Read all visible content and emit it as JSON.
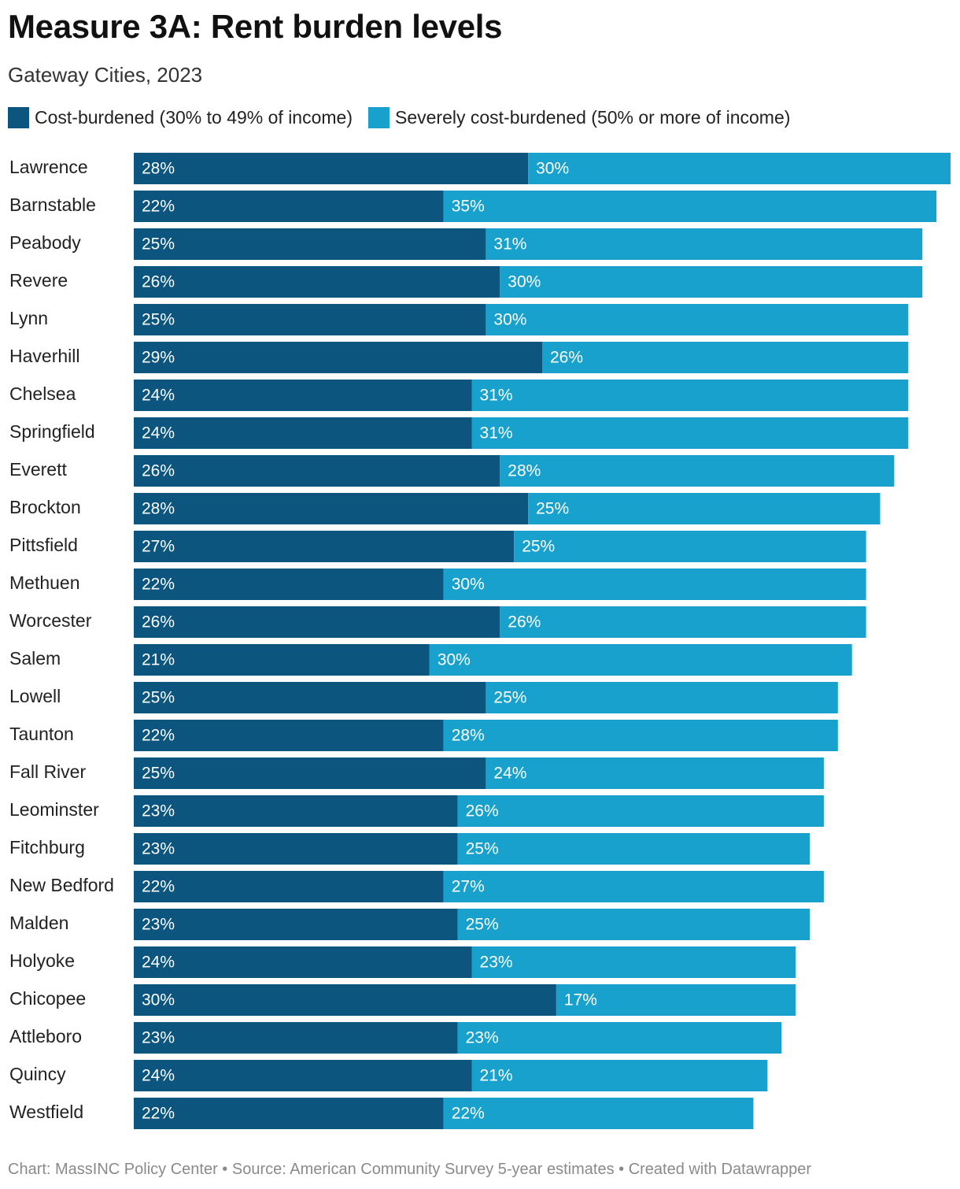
{
  "header": {
    "title": "Measure 3A: Rent burden levels",
    "subtitle": "Gateway Cities, 2023"
  },
  "legend": {
    "items": [
      {
        "label": "Cost-burdened (30% to 49% of income)",
        "color": "#0b557f"
      },
      {
        "label": "Severely cost-burdened (50% or more of income)",
        "color": "#18a1cd"
      }
    ]
  },
  "footer": {
    "text": "Chart: MassINC Policy Center • Source: American Community Survey 5-year estimates • Created with Datawrapper"
  },
  "chart_data": {
    "type": "bar",
    "orientation": "horizontal",
    "stacked": true,
    "value_suffix": "%",
    "categories": [
      "Lawrence",
      "Barnstable",
      "Peabody",
      "Revere",
      "Lynn",
      "Haverhill",
      "Chelsea",
      "Springfield",
      "Everett",
      "Brockton",
      "Pittsfield",
      "Methuen",
      "Worcester",
      "Salem",
      "Lowell",
      "Taunton",
      "Fall River",
      "Leominster",
      "Fitchburg",
      "New Bedford",
      "Malden",
      "Holyoke",
      "Chicopee",
      "Attleboro",
      "Quincy",
      "Westfield"
    ],
    "series": [
      {
        "name": "Cost-burdened (30% to 49% of income)",
        "color": "#0b557f",
        "values": [
          28,
          22,
          25,
          26,
          25,
          29,
          24,
          24,
          26,
          28,
          27,
          22,
          26,
          21,
          25,
          22,
          25,
          23,
          23,
          22,
          23,
          24,
          30,
          23,
          24,
          22
        ]
      },
      {
        "name": "Severely cost-burdened (50% or more of income)",
        "color": "#18a1cd",
        "values": [
          30,
          35,
          31,
          30,
          30,
          26,
          31,
          31,
          28,
          25,
          25,
          30,
          26,
          30,
          25,
          28,
          24,
          26,
          25,
          27,
          25,
          23,
          17,
          23,
          21,
          22
        ]
      }
    ],
    "xlim": [
      0,
      58
    ],
    "grid": false,
    "legend_position": "top-left"
  }
}
